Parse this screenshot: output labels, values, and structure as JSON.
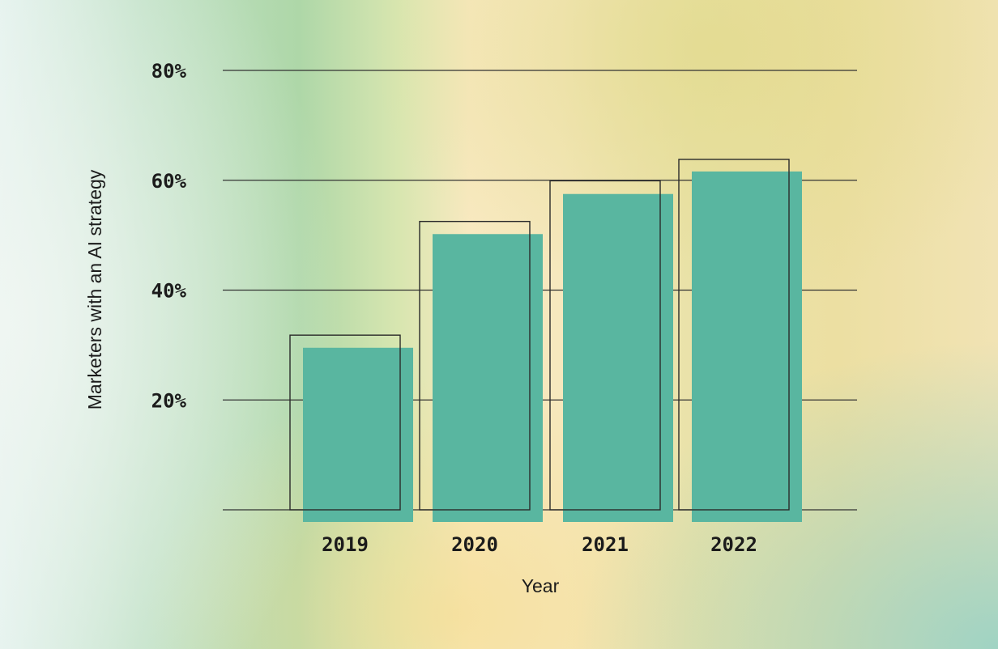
{
  "chart_data": {
    "type": "bar",
    "categories": [
      "2019",
      "2020",
      "2021",
      "2022"
    ],
    "series": [
      {
        "values": [
          29.5,
          50.2,
          57.5,
          61.6
        ]
      },
      {
        "values": [
          31.8,
          52.5,
          59.9,
          63.8
        ]
      }
    ],
    "title": "",
    "xlabel": "Year",
    "ylabel": "Marketers with an AI strategy",
    "ylim": [
      0,
      80
    ],
    "y_ticks": [
      20,
      40,
      60,
      80
    ],
    "y_tick_labels": [
      "20%",
      "40%",
      "60%",
      "80%"
    ],
    "grid": true,
    "colors": {
      "bar_fill": "#59b6a0",
      "outline": "#2a2a2a",
      "text": "#1b1b1b"
    }
  }
}
